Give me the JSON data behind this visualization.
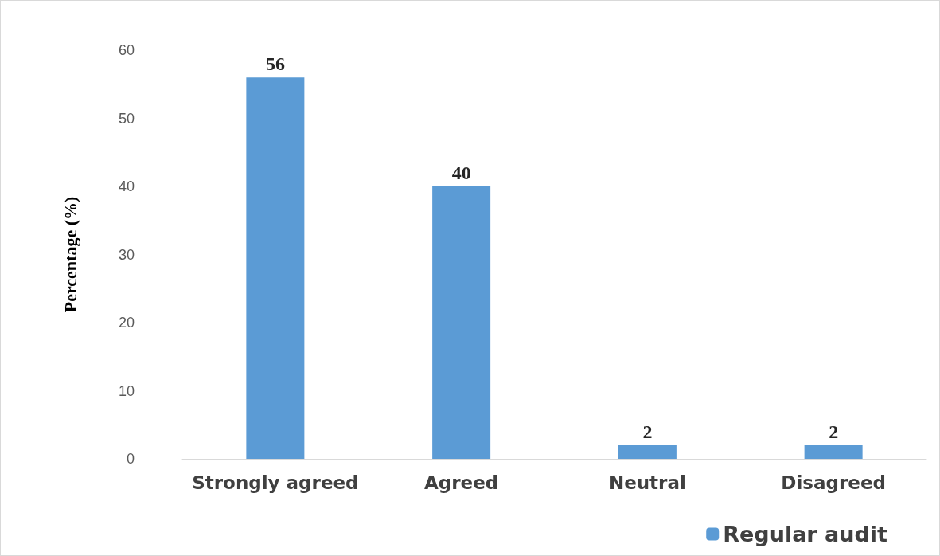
{
  "chart_data": {
    "type": "bar",
    "ylabel": "Percentage (%)",
    "categories": [
      "Strongly agreed",
      "Agreed",
      "Neutral",
      "Disagreed"
    ],
    "series": [
      {
        "name": "Regular audit",
        "color": "#5b9bd5",
        "values": [
          56,
          40,
          2,
          2
        ]
      }
    ],
    "ylim": [
      0,
      60
    ],
    "yticks": [
      0,
      10,
      20,
      30,
      40,
      50,
      60
    ],
    "grid": false,
    "legend": "bottom right",
    "data_labels": true
  }
}
